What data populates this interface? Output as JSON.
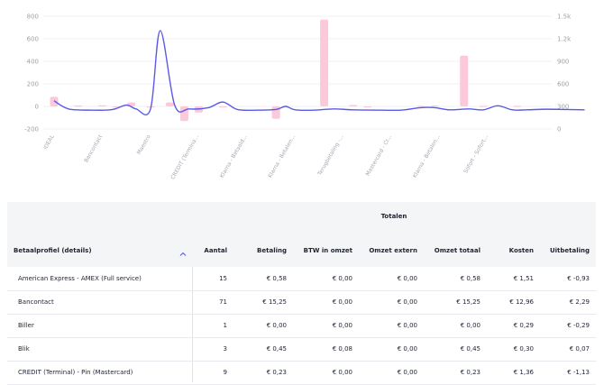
{
  "chart_data": {
    "type": "bar",
    "left_axis": {
      "ticks": [
        "800",
        "600",
        "400",
        "200",
        "0",
        "-200"
      ],
      "ylim": [
        -200,
        800
      ]
    },
    "right_axis": {
      "ticks": [
        "1.5k",
        "1.2k",
        "900",
        "600",
        "300",
        "0"
      ],
      "ylim": [
        -300,
        1500
      ]
    },
    "categories": [
      "iDEAL",
      "Bancontact",
      "Maestro",
      "CREDIT (Termina...",
      "Klarna - Betaald...",
      "Klarna - Betalen...",
      "Terugbetaling -...",
      "Mastercard - Cr...",
      "Klarna - Betalen...",
      "Sofort - Sofort..."
    ],
    "bars": [
      {
        "x": 0,
        "y": 85
      },
      {
        "x": 0.5,
        "y": 8
      },
      {
        "x": 1,
        "y": 10
      },
      {
        "x": 1.3,
        "y": -8
      },
      {
        "x": 1.6,
        "y": 35
      },
      {
        "x": 2,
        "y": -10
      },
      {
        "x": 2.4,
        "y": 35
      },
      {
        "x": 2.7,
        "y": -130
      },
      {
        "x": 3.0,
        "y": -55
      },
      {
        "x": 3.5,
        "y": -5
      },
      {
        "x": 4.6,
        "y": -110
      },
      {
        "x": 5.6,
        "y": 770
      },
      {
        "x": 6.2,
        "y": 12
      },
      {
        "x": 6.5,
        "y": -10
      },
      {
        "x": 7.6,
        "y": 5
      },
      {
        "x": 7.9,
        "y": 8
      },
      {
        "x": 8.5,
        "y": 450
      },
      {
        "x": 8.9,
        "y": 5
      },
      {
        "x": 9.6,
        "y": 5
      }
    ],
    "line": [
      [
        0,
        150
      ],
      [
        0.3,
        20
      ],
      [
        0.8,
        0
      ],
      [
        1.2,
        8
      ],
      [
        1.5,
        80
      ],
      [
        1.7,
        20
      ],
      [
        2.0,
        20
      ],
      [
        2.2,
        1270
      ],
      [
        2.5,
        80
      ],
      [
        2.8,
        20
      ],
      [
        3.2,
        40
      ],
      [
        3.5,
        130
      ],
      [
        3.8,
        10
      ],
      [
        4.2,
        0
      ],
      [
        4.6,
        10
      ],
      [
        4.8,
        60
      ],
      [
        5.0,
        5
      ],
      [
        5.4,
        0
      ],
      [
        5.8,
        20
      ],
      [
        6.2,
        5
      ],
      [
        6.8,
        0
      ],
      [
        7.2,
        0
      ],
      [
        7.6,
        40
      ],
      [
        7.9,
        40
      ],
      [
        8.2,
        5
      ],
      [
        8.6,
        20
      ],
      [
        8.9,
        5
      ],
      [
        9.2,
        70
      ],
      [
        9.5,
        5
      ],
      [
        9.8,
        5
      ],
      [
        10.2,
        15
      ],
      [
        10.6,
        10
      ],
      [
        11.0,
        5
      ]
    ],
    "colors": {
      "bars": "#fbc9da",
      "line": "#5a5ae6",
      "grid": "#eceef2"
    }
  },
  "table": {
    "group_header": "Totalen",
    "columns": {
      "profile": "Betaalprofiel (details)",
      "aantal": "Aantal",
      "betaling": "Betaling",
      "btw": "BTW in omzet",
      "extern": "Omzet extern",
      "totaal": "Omzet totaal",
      "kosten": "Kosten",
      "uitbetaling": "Uitbetaling"
    },
    "sort_icon": "chevron-up-icon",
    "rows": [
      {
        "profile": "American Express - AMEX (Full service)",
        "aantal": "15",
        "betaling": "€ 0,58",
        "btw": "€ 0,00",
        "extern": "€ 0,00",
        "totaal": "€ 0,58",
        "kosten": "€ 1,51",
        "uitbetaling": "€ -0,93"
      },
      {
        "profile": "Bancontact",
        "aantal": "71",
        "betaling": "€ 15,25",
        "btw": "€ 0,00",
        "extern": "€ 0,00",
        "totaal": "€ 15,25",
        "kosten": "€ 12,96",
        "uitbetaling": "€ 2,29"
      },
      {
        "profile": "Biller",
        "aantal": "1",
        "betaling": "€ 0,00",
        "btw": "€ 0,00",
        "extern": "€ 0,00",
        "totaal": "€ 0,00",
        "kosten": "€ 0,29",
        "uitbetaling": "€ -0,29"
      },
      {
        "profile": "Blik",
        "aantal": "3",
        "betaling": "€ 0,45",
        "btw": "€ 0,08",
        "extern": "€ 0,00",
        "totaal": "€ 0,45",
        "kosten": "€ 0,30",
        "uitbetaling": "€ 0,07"
      },
      {
        "profile": "CREDIT (Terminal) - Pin (Mastercard)",
        "aantal": "9",
        "betaling": "€ 0,23",
        "btw": "€ 0,00",
        "extern": "€ 0,00",
        "totaal": "€ 0,23",
        "kosten": "€ 1,36",
        "uitbetaling": "€ -1,13"
      }
    ]
  }
}
